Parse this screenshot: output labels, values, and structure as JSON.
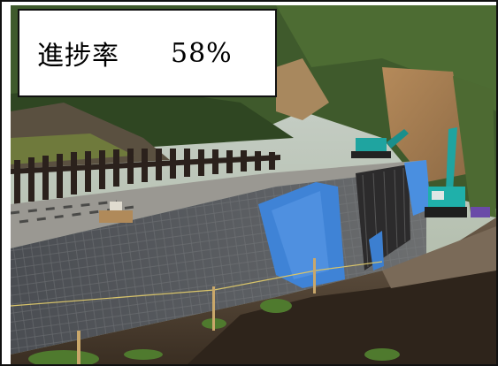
{
  "overlay": {
    "label": "進捗率",
    "value": "58%"
  },
  "scene": {
    "description_icon": "construction-site-photo"
  }
}
